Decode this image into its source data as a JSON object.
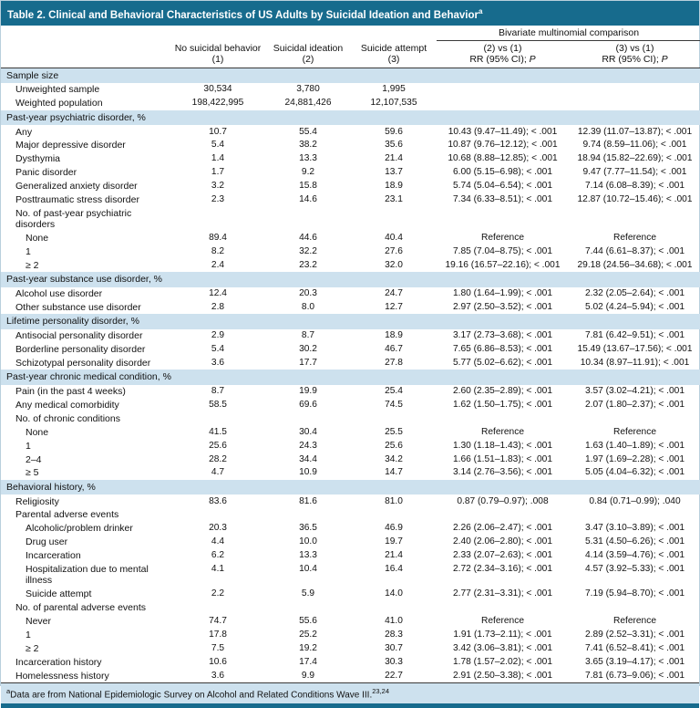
{
  "table": {
    "title": "Table 2. Clinical and Behavioral Characteristics of US Adults by Suicidal Ideation and Behavior",
    "title_sup": "a"
  },
  "colors": {
    "title_bar": "#176b8d",
    "section_band": "#cde1ee",
    "text": "#111111"
  },
  "header": {
    "group_label": "Bivariate multinomial comparison",
    "col1": {
      "line1": "No suicidal behavior",
      "line2": "(1)"
    },
    "col2": {
      "line1": "Suicidal ideation",
      "line2": "(2)"
    },
    "col3": {
      "line1": "Suicide attempt",
      "line2": "(3)"
    },
    "cmp1": {
      "line1": "(2) vs (1)",
      "rr": "RR (95% CI); ",
      "p": "P"
    },
    "cmp2": {
      "line1": "(3) vs (1)",
      "rr": "RR (95% CI); ",
      "p": "P"
    }
  },
  "rows": [
    {
      "type": "section",
      "label": "Sample size"
    },
    {
      "type": "data",
      "indent": 1,
      "label": "Unweighted sample",
      "values": [
        "30,534",
        "3,780",
        "1,995",
        "",
        ""
      ]
    },
    {
      "type": "data",
      "indent": 1,
      "label": "Weighted population",
      "values": [
        "198,422,995",
        "24,881,426",
        "12,107,535",
        "",
        ""
      ]
    },
    {
      "type": "section",
      "label": "Past-year psychiatric disorder, %"
    },
    {
      "type": "data",
      "indent": 1,
      "label": "Any",
      "values": [
        "10.7",
        "55.4",
        "59.6",
        "10.43 (9.47–11.49); < .001",
        "12.39 (11.07–13.87); < .001"
      ]
    },
    {
      "type": "data",
      "indent": 1,
      "label": "Major depressive disorder",
      "values": [
        "5.4",
        "38.2",
        "35.6",
        "10.87 (9.76–12.12); < .001",
        "9.74 (8.59–11.06); < .001"
      ]
    },
    {
      "type": "data",
      "indent": 1,
      "label": "Dysthymia",
      "values": [
        "1.4",
        "13.3",
        "21.4",
        "10.68 (8.88–12.85); < .001",
        "18.94 (15.82–22.69); < .001"
      ]
    },
    {
      "type": "data",
      "indent": 1,
      "label": "Panic disorder",
      "values": [
        "1.7",
        "9.2",
        "13.7",
        "6.00 (5.15–6.98); < .001",
        "9.47 (7.77–11.54); < .001"
      ]
    },
    {
      "type": "data",
      "indent": 1,
      "label": "Generalized anxiety disorder",
      "values": [
        "3.2",
        "15.8",
        "18.9",
        "5.74 (5.04–6.54); < .001",
        "7.14 (6.08–8.39); < .001"
      ]
    },
    {
      "type": "data",
      "indent": 1,
      "label": "Posttraumatic stress disorder",
      "values": [
        "2.3",
        "14.6",
        "23.1",
        "7.34 (6.33–8.51); < .001",
        "12.87 (10.72–15.46); < .001"
      ]
    },
    {
      "type": "data",
      "indent": 1,
      "label": "No. of past-year psychiatric disorders",
      "values": [
        "",
        "",
        "",
        "",
        ""
      ]
    },
    {
      "type": "data",
      "indent": 2,
      "label": "None",
      "values": [
        "89.4",
        "44.6",
        "40.4",
        "Reference",
        "Reference"
      ]
    },
    {
      "type": "data",
      "indent": 2,
      "label": "1",
      "values": [
        "8.2",
        "32.2",
        "27.6",
        "7.85 (7.04–8.75); < .001",
        "7.44 (6.61–8.37); < .001"
      ]
    },
    {
      "type": "data",
      "indent": 2,
      "label": "≥ 2",
      "values": [
        "2.4",
        "23.2",
        "32.0",
        "19.16 (16.57–22.16); < .001",
        "29.18 (24.56–34.68); < .001"
      ]
    },
    {
      "type": "section",
      "label": "Past-year substance use disorder, %"
    },
    {
      "type": "data",
      "indent": 1,
      "label": "Alcohol use disorder",
      "values": [
        "12.4",
        "20.3",
        "24.7",
        "1.80 (1.64–1.99); < .001",
        "2.32 (2.05–2.64); < .001"
      ]
    },
    {
      "type": "data",
      "indent": 1,
      "label": "Other substance use disorder",
      "values": [
        "2.8",
        "8.0",
        "12.7",
        "2.97 (2.50–3.52); < .001",
        "5.02 (4.24–5.94); < .001"
      ]
    },
    {
      "type": "section",
      "label": "Lifetime personality disorder, %"
    },
    {
      "type": "data",
      "indent": 1,
      "label": "Antisocial personality disorder",
      "values": [
        "2.9",
        "8.7",
        "18.9",
        "3.17 (2.73–3.68); < .001",
        "7.81 (6.42–9.51); < .001"
      ]
    },
    {
      "type": "data",
      "indent": 1,
      "label": "Borderline personality disorder",
      "values": [
        "5.4",
        "30.2",
        "46.7",
        "7.65 (6.86–8.53); < .001",
        "15.49 (13.67–17.56); < .001"
      ]
    },
    {
      "type": "data",
      "indent": 1,
      "label": "Schizotypal personality disorder",
      "values": [
        "3.6",
        "17.7",
        "27.8",
        "5.77 (5.02–6.62); < .001",
        "10.34 (8.97–11.91); < .001"
      ]
    },
    {
      "type": "section",
      "label": "Past-year chronic medical condition, %"
    },
    {
      "type": "data",
      "indent": 1,
      "label": "Pain (in the past 4 weeks)",
      "values": [
        "8.7",
        "19.9",
        "25.4",
        "2.60 (2.35–2.89); < .001",
        "3.57 (3.02–4.21); < .001"
      ]
    },
    {
      "type": "data",
      "indent": 1,
      "label": "Any medical comorbidity",
      "values": [
        "58.5",
        "69.6",
        "74.5",
        "1.62 (1.50–1.75); < .001",
        "2.07 (1.80–2.37); < .001"
      ]
    },
    {
      "type": "data",
      "indent": 1,
      "label": "No. of chronic conditions",
      "values": [
        "",
        "",
        "",
        "",
        ""
      ]
    },
    {
      "type": "data",
      "indent": 2,
      "label": "None",
      "values": [
        "41.5",
        "30.4",
        "25.5",
        "Reference",
        "Reference"
      ]
    },
    {
      "type": "data",
      "indent": 2,
      "label": "1",
      "values": [
        "25.6",
        "24.3",
        "25.6",
        "1.30 (1.18–1.43); < .001",
        "1.63 (1.40–1.89); < .001"
      ]
    },
    {
      "type": "data",
      "indent": 2,
      "label": "2–4",
      "values": [
        "28.2",
        "34.4",
        "34.2",
        "1.66 (1.51–1.83); < .001",
        "1.97 (1.69–2.28); < .001"
      ]
    },
    {
      "type": "data",
      "indent": 2,
      "label": "≥ 5",
      "values": [
        "4.7",
        "10.9",
        "14.7",
        "3.14 (2.76–3.56); < .001",
        "5.05 (4.04–6.32); < .001"
      ]
    },
    {
      "type": "section",
      "label": "Behavioral history, %"
    },
    {
      "type": "data",
      "indent": 1,
      "label": "Religiosity",
      "values": [
        "83.6",
        "81.6",
        "81.0",
        "0.87 (0.79–0.97); .008",
        "0.84 (0.71–0.99); .040"
      ]
    },
    {
      "type": "data",
      "indent": 1,
      "label": "Parental adverse events",
      "values": [
        "",
        "",
        "",
        "",
        ""
      ]
    },
    {
      "type": "data",
      "indent": 2,
      "label": "Alcoholic/problem drinker",
      "values": [
        "20.3",
        "36.5",
        "46.9",
        "2.26 (2.06–2.47); < .001",
        "3.47 (3.10–3.89); < .001"
      ]
    },
    {
      "type": "data",
      "indent": 2,
      "label": "Drug user",
      "values": [
        "4.4",
        "10.0",
        "19.7",
        "2.40 (2.06–2.80); < .001",
        "5.31 (4.50–6.26); < .001"
      ]
    },
    {
      "type": "data",
      "indent": 2,
      "label": "Incarceration",
      "values": [
        "6.2",
        "13.3",
        "21.4",
        "2.33 (2.07–2.63); < .001",
        "4.14 (3.59–4.76); < .001"
      ]
    },
    {
      "type": "data",
      "indent": 2,
      "label": "Hospitalization due to mental illness",
      "values": [
        "4.1",
        "10.4",
        "16.4",
        "2.72 (2.34–3.16); < .001",
        "4.57 (3.92–5.33); < .001"
      ]
    },
    {
      "type": "data",
      "indent": 2,
      "label": "Suicide attempt",
      "values": [
        "2.2",
        "5.9",
        "14.0",
        "2.77 (2.31–3.31); < .001",
        "7.19 (5.94–8.70); < .001"
      ]
    },
    {
      "type": "data",
      "indent": 1,
      "label": "No. of parental adverse events",
      "values": [
        "",
        "",
        "",
        "",
        ""
      ]
    },
    {
      "type": "data",
      "indent": 2,
      "label": "Never",
      "values": [
        "74.7",
        "55.6",
        "41.0",
        "Reference",
        "Reference"
      ]
    },
    {
      "type": "data",
      "indent": 2,
      "label": "1",
      "values": [
        "17.8",
        "25.2",
        "28.3",
        "1.91 (1.73–2.11); < .001",
        "2.89 (2.52–3.31); < .001"
      ]
    },
    {
      "type": "data",
      "indent": 2,
      "label": "≥ 2",
      "values": [
        "7.5",
        "19.2",
        "30.7",
        "3.42 (3.06–3.81); < .001",
        "7.41 (6.52–8.41); < .001"
      ]
    },
    {
      "type": "data",
      "indent": 1,
      "label": "Incarceration history",
      "values": [
        "10.6",
        "17.4",
        "30.3",
        "1.78 (1.57–2.02); < .001",
        "3.65 (3.19–4.17); < .001"
      ]
    },
    {
      "type": "data",
      "indent": 1,
      "label": "Homelessness history",
      "values": [
        "3.6",
        "9.9",
        "22.7",
        "2.91 (2.50–3.38); < .001",
        "7.81 (6.73–9.06); < .001"
      ]
    }
  ],
  "footnote": {
    "sup": "a",
    "text": "Data are from National Epidemiologic Survey on Alcohol and Related Conditions Wave III.",
    "ref_sup": "23,24"
  }
}
